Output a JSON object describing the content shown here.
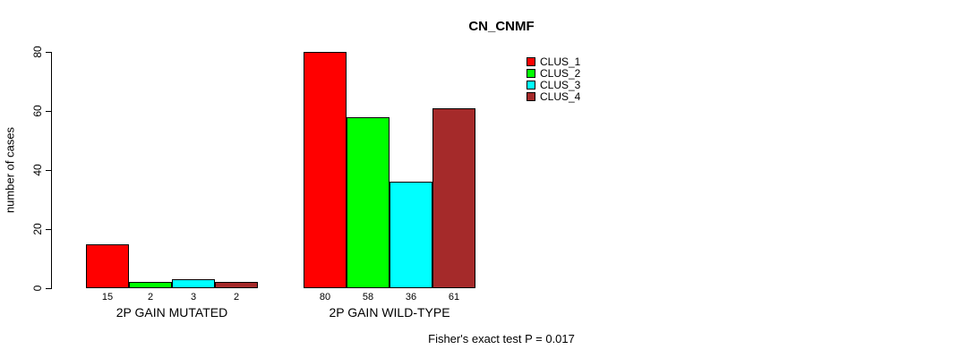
{
  "title": "CN_CNMF",
  "y_axis": {
    "label": "number of cases",
    "tick_labels": [
      "0",
      "20",
      "40",
      "60",
      "80"
    ]
  },
  "footer": "Fisher's exact test P = 0.017",
  "legend": {
    "items": [
      {
        "label": "CLUS_1",
        "color": "#ff0000"
      },
      {
        "label": "CLUS_2",
        "color": "#00ff00"
      },
      {
        "label": "CLUS_3",
        "color": "#00ffff"
      },
      {
        "label": "CLUS_4",
        "color": "#a52a2a"
      }
    ]
  },
  "chart_data": {
    "type": "bar",
    "title": "CN_CNMF",
    "xlabel": "",
    "ylabel": "number of cases",
    "ylim": [
      0,
      80
    ],
    "yticks": [
      0,
      20,
      40,
      60,
      80
    ],
    "grid": false,
    "legend_position": "top-right-outside",
    "categories": [
      "2P GAIN MUTATED",
      "2P GAIN WILD-TYPE"
    ],
    "series": [
      {
        "name": "CLUS_1",
        "color": "#ff0000",
        "values": [
          15,
          80
        ]
      },
      {
        "name": "CLUS_2",
        "color": "#00ff00",
        "values": [
          2,
          58
        ]
      },
      {
        "name": "CLUS_3",
        "color": "#00ffff",
        "values": [
          3,
          36
        ]
      },
      {
        "name": "CLUS_4",
        "color": "#a52a2a",
        "values": [
          2,
          61
        ]
      }
    ],
    "bar_value_labels": [
      [
        15,
        2,
        3,
        2
      ],
      [
        80,
        58,
        36,
        61
      ]
    ],
    "annotation": "Fisher's exact test P = 0.017"
  }
}
